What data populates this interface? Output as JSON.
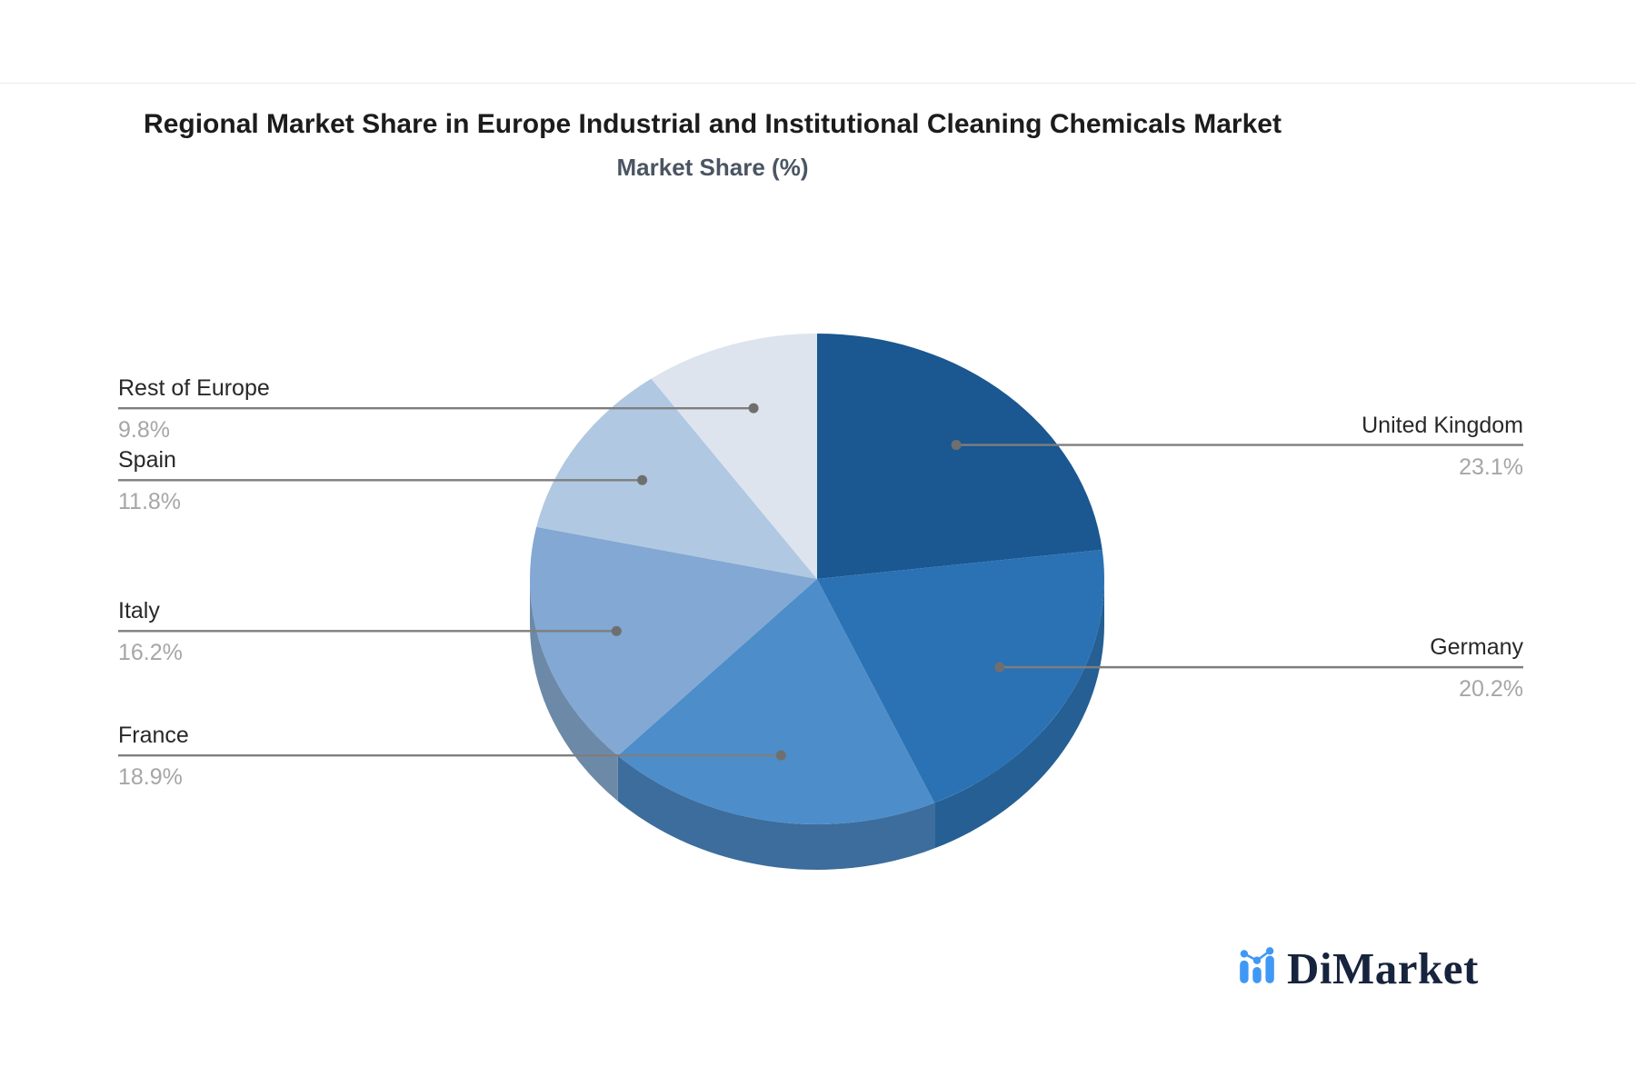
{
  "header": {
    "title": "Regional Market Share in Europe Industrial and Institutional Cleaning Chemicals Market",
    "subtitle": "Market Share (%)"
  },
  "chart_data": {
    "type": "pie",
    "title": "Regional Market Share in Europe Industrial and Institutional Cleaning Chemicals Market",
    "subtitle": "Market Share (%)",
    "unit": "%",
    "style": "3d",
    "start_angle_deg": 0,
    "direction": "clockwise",
    "legend_position": "none",
    "label_style": "callout-leader-lines",
    "slices": [
      {
        "label": "United Kingdom",
        "value": 23.1,
        "display": "23.1%",
        "color": "#1b5791",
        "side_color": "#174a7c"
      },
      {
        "label": "Germany",
        "value": 20.2,
        "display": "20.2%",
        "color": "#2b72b4",
        "side_color": "#255f94"
      },
      {
        "label": "France",
        "value": 18.9,
        "display": "18.9%",
        "color": "#4d8dca",
        "side_color": "#3c6d9c"
      },
      {
        "label": "Italy",
        "value": 16.2,
        "display": "16.2%",
        "color": "#82a8d3",
        "side_color": "#6d89a8"
      },
      {
        "label": "Spain",
        "value": 11.8,
        "display": "11.8%",
        "color": "#b0c8e2",
        "side_color": "#93a7bd"
      },
      {
        "label": "Rest of Europe",
        "value": 9.8,
        "display": "9.8%",
        "color": "#dde4ee",
        "side_color": "#b9c4d3"
      }
    ],
    "label_name_color": "#282828",
    "label_value_color": "#a6a6a6",
    "leader_line_color": "#7e7e7e",
    "leader_dot_color": "#6f6f6f"
  },
  "logo": {
    "text": "DiMarket",
    "icon": "bar-chart-trend-icon",
    "icon_color": "#3f98f5",
    "text_color": "#17243d"
  }
}
